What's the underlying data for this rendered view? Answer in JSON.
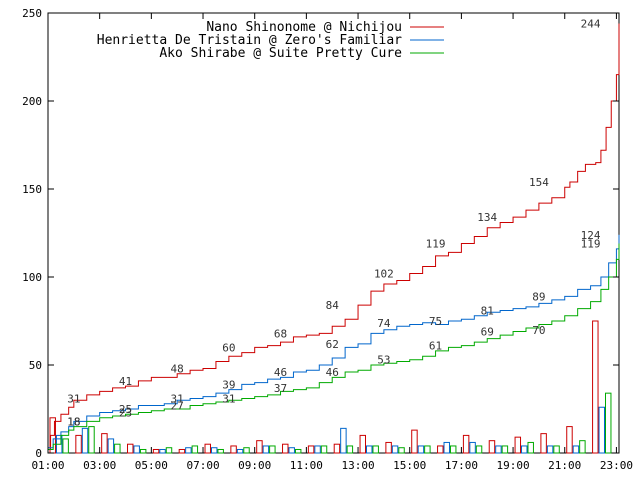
{
  "chart_data": {
    "type": "line",
    "xlabel": "",
    "ylabel": "",
    "x_ticks": [
      "01:00",
      "03:00",
      "05:00",
      "07:00",
      "09:00",
      "11:00",
      "13:00",
      "15:00",
      "17:00",
      "19:00",
      "21:00",
      "23:00"
    ],
    "y_ticks": [
      "0",
      "50",
      "100",
      "150",
      "200",
      "250"
    ],
    "xlim": [
      1,
      23.1
    ],
    "ylim": [
      0,
      250
    ],
    "grid": false,
    "legend_position": "top-right",
    "series": [
      {
        "name": "Nano Shinonome @ Nichijou",
        "color": "#cc0000",
        "points": [
          [
            1.0,
            2
          ],
          [
            1.1,
            10
          ],
          [
            1.25,
            18
          ],
          [
            1.5,
            22
          ],
          [
            1.8,
            26
          ],
          [
            2.0,
            30
          ],
          [
            2.5,
            33
          ],
          [
            3.0,
            35
          ],
          [
            3.5,
            37
          ],
          [
            4.0,
            38
          ],
          [
            4.5,
            41
          ],
          [
            5.0,
            43
          ],
          [
            5.5,
            43
          ],
          [
            6.0,
            45
          ],
          [
            6.5,
            47
          ],
          [
            7.0,
            48
          ],
          [
            7.5,
            52
          ],
          [
            8.0,
            55
          ],
          [
            8.5,
            57
          ],
          [
            9.0,
            60
          ],
          [
            9.5,
            61
          ],
          [
            10.0,
            63
          ],
          [
            10.5,
            66
          ],
          [
            11.0,
            67
          ],
          [
            11.5,
            68
          ],
          [
            12.0,
            72
          ],
          [
            12.5,
            76
          ],
          [
            13.0,
            84
          ],
          [
            13.5,
            92
          ],
          [
            14.0,
            96
          ],
          [
            14.5,
            98
          ],
          [
            15.0,
            102
          ],
          [
            15.5,
            106
          ],
          [
            16.0,
            112
          ],
          [
            16.5,
            114
          ],
          [
            17.0,
            119
          ],
          [
            17.5,
            123
          ],
          [
            18.0,
            128
          ],
          [
            18.5,
            131
          ],
          [
            19.0,
            134
          ],
          [
            19.5,
            138
          ],
          [
            20.0,
            142
          ],
          [
            20.5,
            145
          ],
          [
            21.0,
            151
          ],
          [
            21.2,
            154
          ],
          [
            21.5,
            160
          ],
          [
            21.8,
            164
          ],
          [
            22.2,
            165
          ],
          [
            22.4,
            172
          ],
          [
            22.6,
            185
          ],
          [
            22.8,
            200
          ],
          [
            23.0,
            215
          ],
          [
            23.1,
            244
          ]
        ],
        "labels": [
          [
            2.0,
            31
          ],
          [
            4.0,
            41
          ],
          [
            6.0,
            48
          ],
          [
            8.0,
            60
          ],
          [
            10.0,
            68
          ],
          [
            12.0,
            84
          ],
          [
            14.0,
            102
          ],
          [
            16.0,
            119
          ],
          [
            18.0,
            134
          ],
          [
            20.0,
            154
          ],
          [
            22.0,
            244
          ]
        ]
      },
      {
        "name": "Henrietta De Tristain @ Zero's Familiar",
        "color": "#0066cc",
        "points": [
          [
            1.0,
            3
          ],
          [
            1.2,
            8
          ],
          [
            1.5,
            12
          ],
          [
            1.8,
            15
          ],
          [
            2.0,
            18
          ],
          [
            2.5,
            21
          ],
          [
            3.0,
            23
          ],
          [
            3.5,
            24
          ],
          [
            4.0,
            25
          ],
          [
            4.5,
            27
          ],
          [
            5.0,
            27
          ],
          [
            5.5,
            28
          ],
          [
            6.0,
            30
          ],
          [
            6.5,
            31
          ],
          [
            7.0,
            32
          ],
          [
            7.5,
            34
          ],
          [
            8.0,
            36
          ],
          [
            8.5,
            39
          ],
          [
            9.0,
            40
          ],
          [
            9.5,
            42
          ],
          [
            10.0,
            43
          ],
          [
            10.5,
            46
          ],
          [
            11.0,
            47
          ],
          [
            11.5,
            50
          ],
          [
            12.0,
            54
          ],
          [
            12.5,
            60
          ],
          [
            13.0,
            62
          ],
          [
            13.5,
            68
          ],
          [
            14.0,
            70
          ],
          [
            14.5,
            72
          ],
          [
            15.0,
            73
          ],
          [
            15.5,
            74
          ],
          [
            16.0,
            73
          ],
          [
            16.5,
            75
          ],
          [
            17.0,
            76
          ],
          [
            17.5,
            78
          ],
          [
            18.0,
            80
          ],
          [
            18.5,
            81
          ],
          [
            19.0,
            82
          ],
          [
            19.5,
            83
          ],
          [
            20.0,
            85
          ],
          [
            20.5,
            87
          ],
          [
            21.0,
            89
          ],
          [
            21.5,
            93
          ],
          [
            22.0,
            95
          ],
          [
            22.4,
            100
          ],
          [
            22.7,
            108
          ],
          [
            23.0,
            116
          ],
          [
            23.1,
            124
          ]
        ],
        "labels": [
          [
            2.0,
            18
          ],
          [
            4.0,
            25
          ],
          [
            6.0,
            31
          ],
          [
            8.0,
            39
          ],
          [
            10.0,
            46
          ],
          [
            12.0,
            62
          ],
          [
            14.0,
            74
          ],
          [
            16.0,
            75
          ],
          [
            18.0,
            81
          ],
          [
            20.0,
            89
          ],
          [
            22.0,
            124
          ]
        ]
      },
      {
        "name": "Ako Shirabe @ Suite Pretty Cure",
        "color": "#00aa00",
        "points": [
          [
            1.0,
            2
          ],
          [
            1.2,
            5
          ],
          [
            1.5,
            10
          ],
          [
            1.8,
            13
          ],
          [
            2.0,
            15
          ],
          [
            2.5,
            18
          ],
          [
            3.0,
            20
          ],
          [
            3.5,
            21
          ],
          [
            4.0,
            22
          ],
          [
            4.5,
            23
          ],
          [
            5.0,
            24
          ],
          [
            5.5,
            25
          ],
          [
            6.0,
            25
          ],
          [
            6.5,
            27
          ],
          [
            7.0,
            28
          ],
          [
            7.5,
            29
          ],
          [
            8.0,
            30
          ],
          [
            8.5,
            31
          ],
          [
            9.0,
            32
          ],
          [
            9.5,
            33
          ],
          [
            10.0,
            35
          ],
          [
            10.5,
            36
          ],
          [
            11.0,
            37
          ],
          [
            11.5,
            40
          ],
          [
            12.0,
            43
          ],
          [
            12.5,
            46
          ],
          [
            13.0,
            47
          ],
          [
            13.5,
            50
          ],
          [
            14.0,
            51
          ],
          [
            14.5,
            52
          ],
          [
            15.0,
            53
          ],
          [
            15.5,
            55
          ],
          [
            16.0,
            58
          ],
          [
            16.5,
            60
          ],
          [
            17.0,
            61
          ],
          [
            17.5,
            63
          ],
          [
            18.0,
            65
          ],
          [
            18.5,
            67
          ],
          [
            19.0,
            69
          ],
          [
            19.5,
            71
          ],
          [
            20.0,
            73
          ],
          [
            20.5,
            75
          ],
          [
            21.0,
            78
          ],
          [
            21.5,
            82
          ],
          [
            22.0,
            86
          ],
          [
            22.4,
            93
          ],
          [
            22.7,
            100
          ],
          [
            23.0,
            110
          ],
          [
            23.1,
            119
          ]
        ],
        "labels": [
          [
            2.0,
            18
          ],
          [
            4.0,
            23
          ],
          [
            6.0,
            27
          ],
          [
            8.0,
            31
          ],
          [
            10.0,
            37
          ],
          [
            12.0,
            46
          ],
          [
            14.0,
            53
          ],
          [
            16.0,
            61
          ],
          [
            18.0,
            69
          ],
          [
            20.0,
            70
          ],
          [
            22.0,
            119
          ]
        ]
      }
    ],
    "bars_by_hour": [
      [
        20,
        10,
        11,
        5,
        2,
        2,
        5,
        4,
        7,
        5,
        4,
        5,
        10,
        6,
        13,
        4,
        10,
        7,
        9,
        11,
        15,
        75
      ],
      [
        10,
        14,
        8,
        4,
        2,
        3,
        3,
        2,
        4,
        3,
        4,
        14,
        4,
        4,
        4,
        6,
        6,
        4,
        4,
        4,
        4,
        26
      ],
      [
        8,
        15,
        5,
        2,
        3,
        4,
        2,
        3,
        4,
        2,
        4,
        4,
        4,
        3,
        4,
        4,
        4,
        4,
        6,
        4,
        7,
        34
      ]
    ]
  }
}
